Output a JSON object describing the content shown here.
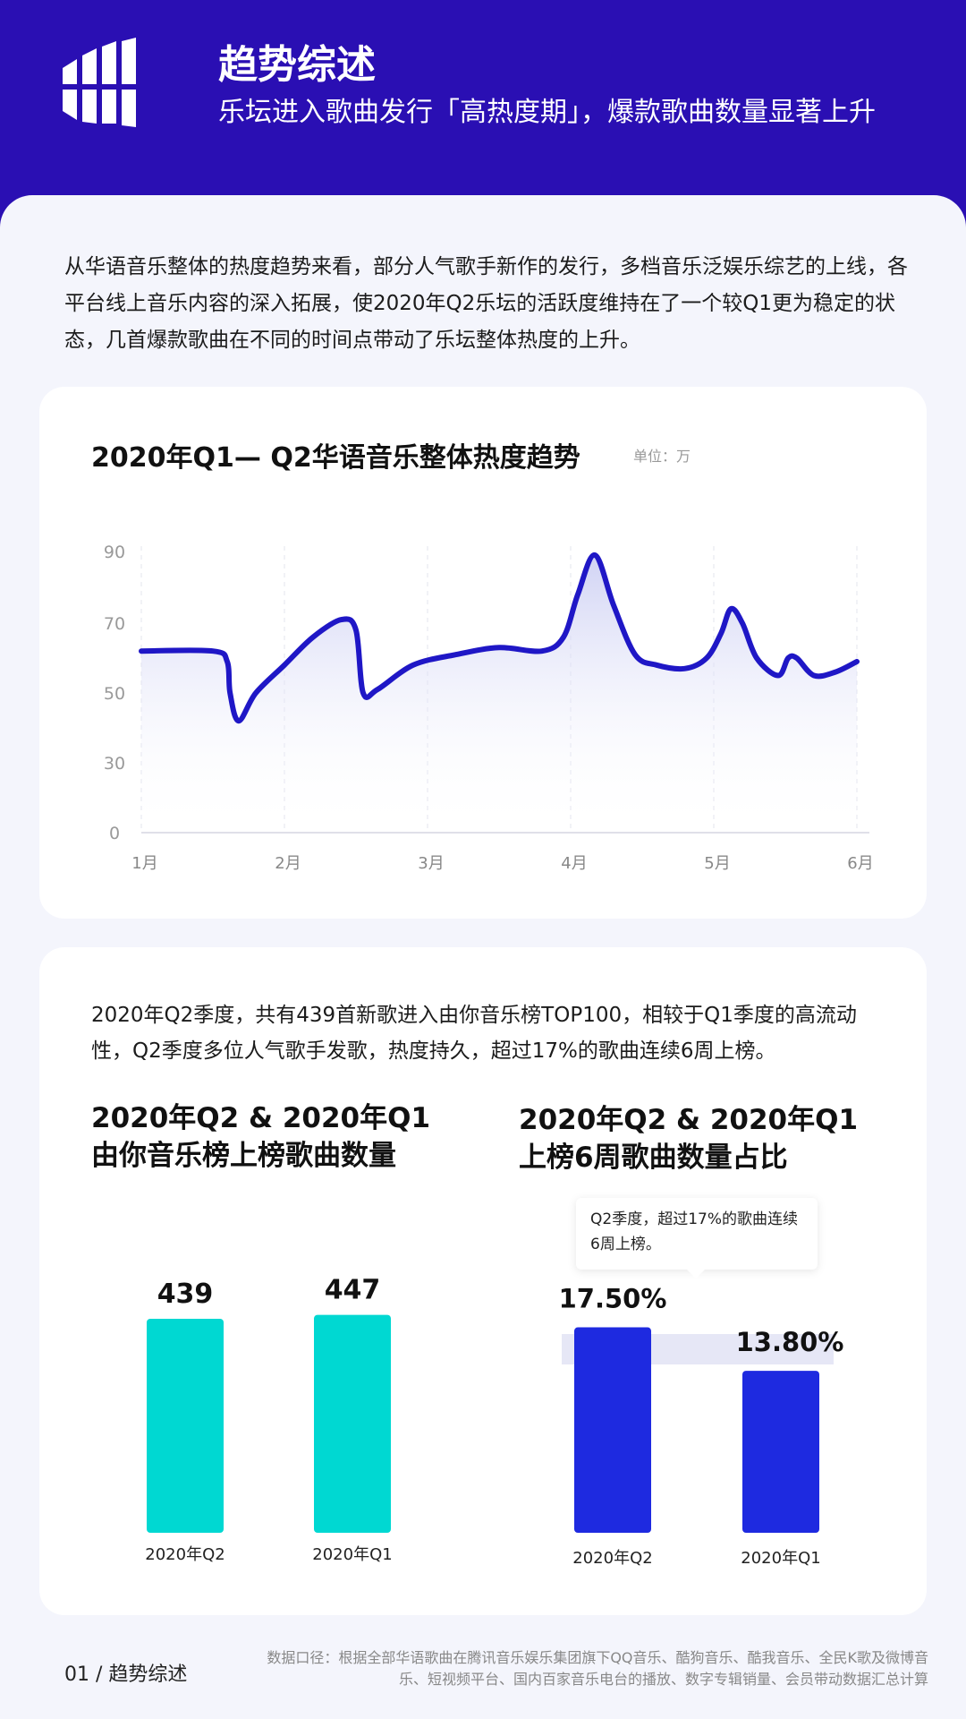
{
  "header": {
    "title": "趋势综述",
    "subtitle": "乐坛进入歌曲发行「高热度期」，爆款歌曲数量显著上升"
  },
  "intro": "从华语音乐整体的热度趋势来看，部分人气歌手新作的发行，多档音乐泛娱乐综艺的上线，各平台线上音乐内容的深入拓展，使2020年Q2乐坛的活跃度维持在了一个较Q1更为稳定的状态，几首爆款歌曲在不同的时间点带动了乐坛整体热度的上升。",
  "card2_text": "2020年Q2季度，共有439首新歌进入由你音乐榜TOP100，相较于Q1季度的高流动性，Q2季度多位人气歌手发歌，热度持久，超过17%的歌曲连续6周上榜。",
  "callout": "Q2季度，超过17%的歌曲连续6周上榜。",
  "footer": {
    "page": "01 / 趋势综述",
    "source": "数据口径：根据全部华语歌曲在腾讯音乐娱乐集团旗下QQ音乐、酷狗音乐、酷我音乐、全民K歌及微博音乐、短视频平台、国内百家音乐电台的播放、数字专辑销量、会员带动数据汇总计算"
  },
  "colors": {
    "header": "#2A0FB3",
    "line": "#1F17C6",
    "teal": "#00D8D2",
    "blue": "#1E2AE0"
  },
  "chart_data": [
    {
      "type": "area",
      "title": "2020年Q1— Q2华语音乐整体热度趋势",
      "unit": "单位：万",
      "xlim": [
        0,
        5
      ],
      "ylim": [
        0,
        90
      ],
      "y_ticks": [
        0,
        30,
        50,
        70,
        90
      ],
      "x_ticks": [
        {
          "x": 0,
          "label": "1月"
        },
        {
          "x": 1,
          "label": "2月"
        },
        {
          "x": 2,
          "label": "3月"
        },
        {
          "x": 3,
          "label": "4月"
        },
        {
          "x": 4,
          "label": "5月"
        },
        {
          "x": 5,
          "label": "6月"
        }
      ],
      "points": [
        [
          0,
          62
        ],
        [
          0.5,
          62
        ],
        [
          0.6,
          59
        ],
        [
          0.62,
          50
        ],
        [
          0.68,
          42
        ],
        [
          0.8,
          50
        ],
        [
          1.0,
          58
        ],
        [
          1.2,
          66
        ],
        [
          1.4,
          71
        ],
        [
          1.5,
          68
        ],
        [
          1.55,
          50
        ],
        [
          1.65,
          51
        ],
        [
          1.9,
          58
        ],
        [
          2.2,
          61
        ],
        [
          2.5,
          63
        ],
        [
          2.8,
          62
        ],
        [
          2.95,
          66
        ],
        [
          3.05,
          78
        ],
        [
          3.17,
          89
        ],
        [
          3.3,
          75
        ],
        [
          3.45,
          61
        ],
        [
          3.6,
          58
        ],
        [
          3.8,
          57
        ],
        [
          3.95,
          60
        ],
        [
          4.05,
          67
        ],
        [
          4.12,
          74
        ],
        [
          4.2,
          70
        ],
        [
          4.3,
          60
        ],
        [
          4.45,
          55
        ],
        [
          4.52,
          60
        ],
        [
          4.58,
          60
        ],
        [
          4.7,
          55
        ],
        [
          4.85,
          56
        ],
        [
          5.0,
          59
        ]
      ]
    },
    {
      "type": "bar",
      "title": "2020年Q2 & 2020年Q1由你音乐榜上榜歌曲数量",
      "title_lines": [
        "2020年Q2 & 2020年Q1",
        "由你音乐榜上榜歌曲数量"
      ],
      "categories": [
        "2020年Q2",
        "2020年Q1"
      ],
      "values": [
        439,
        447
      ],
      "value_labels": [
        "439",
        "447"
      ]
    },
    {
      "type": "bar",
      "title": "2020年Q2 & 2020年Q1上榜6周歌曲数量占比",
      "title_lines": [
        "2020年Q2 & 2020年Q1",
        "上榜6周歌曲数量占比"
      ],
      "categories": [
        "2020年Q2",
        "2020年Q1"
      ],
      "values": [
        17.5,
        13.8
      ],
      "value_labels": [
        "17.50%",
        "13.80%"
      ]
    }
  ]
}
